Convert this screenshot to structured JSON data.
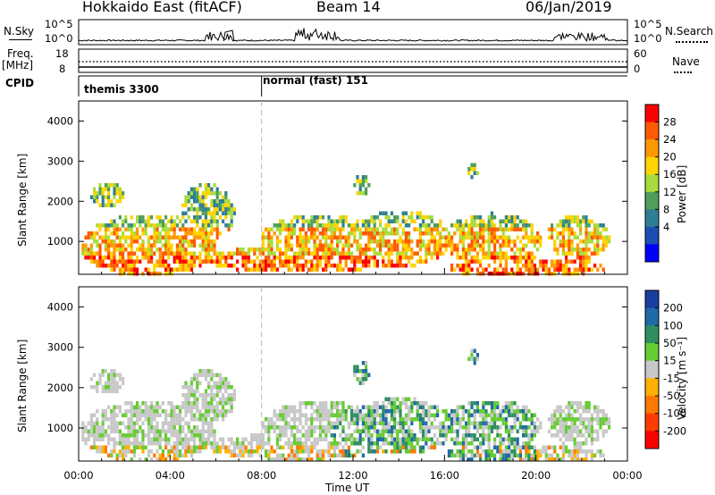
{
  "header": {
    "station": "Hokkaido East (fitACF)",
    "beam": "Beam 14",
    "date": "06/Jan/2019"
  },
  "noise_panel": {
    "left_label": "N.Sky",
    "right_label": "N.Search",
    "left_ticks": [
      "10^5",
      "10^0"
    ],
    "right_ticks": [
      "10^5",
      "10^0"
    ]
  },
  "freq_panel": {
    "left_label_line1": "Freq.",
    "left_label_line2": "[MHz]",
    "right_label": "Nave",
    "left_ticks": [
      "18",
      "8"
    ],
    "right_ticks": [
      "60",
      "0"
    ]
  },
  "cpid_panel": {
    "label": "CPID",
    "segments": [
      {
        "name": "themis 3300",
        "start_hour": 0
      },
      {
        "name": "normal (fast) 151",
        "start_hour": 8
      }
    ]
  },
  "x_axis": {
    "label": "Time UT",
    "ticks": [
      "00:00",
      "04:00",
      "08:00",
      "12:00",
      "16:00",
      "20:00",
      "00:00"
    ]
  },
  "chart_data": [
    {
      "type": "heatmap",
      "name": "power",
      "ylabel": "Slant Range [km]",
      "yticks": [
        "4000",
        "3000",
        "2000",
        "1000"
      ],
      "ylim": [
        180,
        4500
      ],
      "xlim": [
        0,
        24
      ],
      "colorbar": {
        "label": "Power [dB]",
        "ticks": [
          "28",
          "24",
          "20",
          "16",
          "12",
          "8",
          "4"
        ],
        "colors": [
          "#ff0000",
          "#ff5a00",
          "#ff9900",
          "#ffd400",
          "#a8dc3c",
          "#4f9e5a",
          "#2e7f96",
          "#1b4fb5",
          "#0000ff"
        ]
      }
    },
    {
      "type": "heatmap",
      "name": "velocity",
      "ylabel": "Slant Range [km]",
      "yticks": [
        "4000",
        "3000",
        "2000",
        "1000"
      ],
      "ylim": [
        180,
        4500
      ],
      "xlim": [
        0,
        24
      ],
      "colorbar": {
        "label": "Velocity [m s⁻¹]",
        "ticks": [
          "200",
          "100",
          "50",
          "15",
          "-15",
          "-50",
          "-100",
          "-200"
        ],
        "colors": [
          "#1a3ea0",
          "#1f6aa8",
          "#2f8f5f",
          "#66cc33",
          "#c8c8c8",
          "#ffb000",
          "#ff7800",
          "#ff3c00",
          "#ff0000"
        ]
      }
    }
  ]
}
